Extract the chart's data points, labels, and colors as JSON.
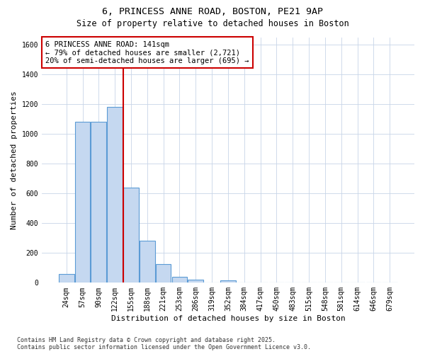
{
  "title1": "6, PRINCESS ANNE ROAD, BOSTON, PE21 9AP",
  "title2": "Size of property relative to detached houses in Boston",
  "xlabel": "Distribution of detached houses by size in Boston",
  "ylabel": "Number of detached properties",
  "categories": [
    "24sqm",
    "57sqm",
    "90sqm",
    "122sqm",
    "155sqm",
    "188sqm",
    "221sqm",
    "253sqm",
    "286sqm",
    "319sqm",
    "352sqm",
    "384sqm",
    "417sqm",
    "450sqm",
    "483sqm",
    "515sqm",
    "548sqm",
    "581sqm",
    "614sqm",
    "646sqm",
    "679sqm"
  ],
  "values": [
    60,
    1080,
    1080,
    1180,
    640,
    280,
    125,
    40,
    20,
    0,
    15,
    0,
    0,
    0,
    0,
    0,
    0,
    0,
    0,
    0,
    0
  ],
  "bar_color": "#c5d8f0",
  "bar_edge_color": "#5b9bd5",
  "grid_color": "#c8d4e8",
  "bg_color": "#ffffff",
  "plot_bg_color": "#ffffff",
  "marker_label": "6 PRINCESS ANNE ROAD: 141sqm",
  "annotation_line1": "← 79% of detached houses are smaller (2,721)",
  "annotation_line2": "20% of semi-detached houses are larger (695) →",
  "annotation_box_color": "#ffffff",
  "annotation_box_edge": "#cc0000",
  "vline_color": "#cc0000",
  "vline_x": 3.5,
  "ylim": [
    0,
    1650
  ],
  "yticks": [
    0,
    200,
    400,
    600,
    800,
    1000,
    1200,
    1400,
    1600
  ],
  "footer1": "Contains HM Land Registry data © Crown copyright and database right 2025.",
  "footer2": "Contains public sector information licensed under the Open Government Licence v3.0.",
  "title_fontsize": 9.5,
  "subtitle_fontsize": 8.5,
  "tick_fontsize": 7,
  "label_fontsize": 8,
  "annotation_fontsize": 7.5,
  "footer_fontsize": 6
}
